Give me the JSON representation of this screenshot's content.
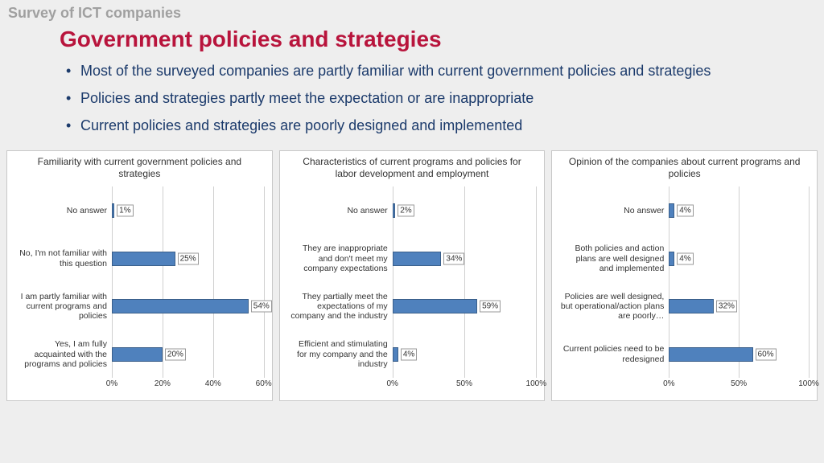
{
  "survey_label": "Survey of ICT companies",
  "title": "Government policies and strategies",
  "bullets": [
    "Most of the surveyed companies are partly familiar with current government policies and strategies",
    "Policies and strategies partly meet the expectation or are inappropriate",
    "Current policies and strategies are poorly designed and implemented"
  ],
  "colors": {
    "bar_fill": "#4f81bd",
    "bar_border": "#3a5f8a",
    "grid": "#d0d0d0",
    "panel_border": "#c8c8c8",
    "background": "#eeeeee",
    "title_color": "#b8143c",
    "bullet_color": "#1b3a6b"
  },
  "charts": [
    {
      "title": "Familiarity with current government policies and strategies",
      "label_width": 120,
      "xmax": 60,
      "xtick_step": 20,
      "rows": [
        {
          "label": "No answer",
          "value": 1
        },
        {
          "label": "No, I'm not familiar with this question",
          "value": 25
        },
        {
          "label": "I am partly familiar with current programs and policies",
          "value": 54
        },
        {
          "label": "Yes, I am fully acquainted with the programs and policies",
          "value": 20
        }
      ]
    },
    {
      "title": "Characteristics of current programs and policies for labor development and employment",
      "label_width": 130,
      "xmax": 100,
      "xtick_step": 50,
      "rows": [
        {
          "label": "No answer",
          "value": 2
        },
        {
          "label": "They are inappropriate and don't meet my company expectations",
          "value": 34
        },
        {
          "label": "They partially meet the expectations of my company and the industry",
          "value": 59
        },
        {
          "label": "Efficient and stimulating for my company and the industry",
          "value": 4
        }
      ]
    },
    {
      "title": "Opinion of the companies about current programs and policies",
      "label_width": 135,
      "xmax": 100,
      "xtick_step": 50,
      "rows": [
        {
          "label": "No answer",
          "value": 4
        },
        {
          "label": "Both policies and action plans are well designed and implemented",
          "value": 4
        },
        {
          "label": "Policies are well designed, but operational/action plans are poorly…",
          "value": 32
        },
        {
          "label": "Current policies need to be redesigned",
          "value": 60
        }
      ]
    }
  ]
}
